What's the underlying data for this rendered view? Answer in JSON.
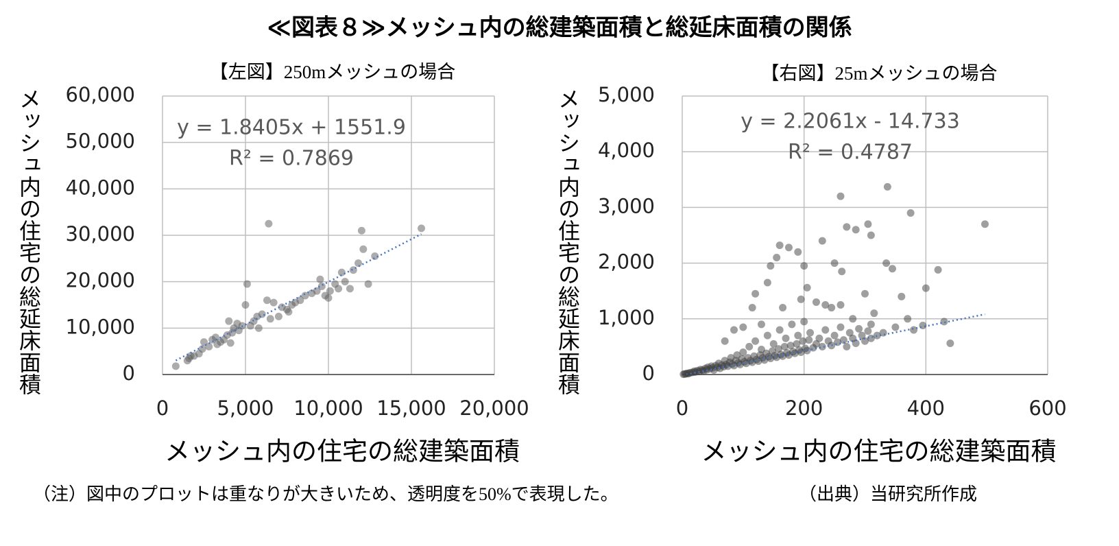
{
  "title": "≪図表８≫メッシュ内の総建築面積と総延床面積の関係",
  "note": "（注）図中のプロットは重なりが大きいため、透明度を50%で表現した。",
  "source": "（出典）当研究所作成",
  "chart_data": [
    {
      "type": "scatter",
      "title": "【左図】250mメッシュの場合",
      "x_label": "メッシュ内の住宅の総建築面積",
      "y_label": "メッシュ内の住宅の総延床面積",
      "annotations": [
        "y = 1.8405x + 1551.9",
        "R² = 0.7869"
      ],
      "color": "#595959",
      "opacity": 0.5,
      "grid": true,
      "xlim": [
        0,
        20000
      ],
      "xticks": [
        0,
        {
          "value": 5000,
          "label": "5,000"
        },
        {
          "value": 10000,
          "label": "10,000"
        },
        {
          "value": 15000,
          "label": "15,000"
        },
        {
          "value": 20000,
          "label": "20,000"
        }
      ],
      "ylim": [
        0,
        60000
      ],
      "yticks": [
        0,
        {
          "value": 10000,
          "label": "10,000"
        },
        {
          "value": 20000,
          "label": "20,000"
        },
        {
          "value": 30000,
          "label": "30,000"
        },
        {
          "value": 40000,
          "label": "40,000"
        },
        {
          "value": 50000,
          "label": "50,000"
        },
        {
          "value": 60000,
          "label": "60,000"
        }
      ],
      "trendline": {
        "color": "#4472c4",
        "x": [
          800,
          15600
        ],
        "y": [
          3024.3,
          30263.7
        ]
      },
      "x": [
        800,
        1500,
        1600,
        1700,
        2200,
        2400,
        2500,
        2800,
        3000,
        3200,
        3500,
        3700,
        3900,
        4000,
        4200,
        4300,
        4500,
        4600,
        4800,
        5000,
        5100,
        5300,
        5500,
        5700,
        5800,
        6000,
        6300,
        6400,
        6700,
        7000,
        7200,
        7500,
        7600,
        7800,
        8000,
        8300,
        8600,
        9000,
        9300,
        9500,
        9600,
        9800,
        10000,
        10100,
        10400,
        10600,
        10800,
        11000,
        11300,
        11500,
        11800,
        12000,
        12100,
        12400,
        12800,
        15600,
        3300,
        1900,
        4100,
        6500
      ],
      "values": [
        1800,
        3000,
        3500,
        4000,
        4500,
        5500,
        7000,
        6000,
        7500,
        8000,
        7000,
        7500,
        8500,
        11500,
        9000,
        10000,
        11000,
        9500,
        10500,
        15000,
        19500,
        10500,
        11500,
        12500,
        10000,
        13000,
        16000,
        32500,
        15500,
        12500,
        14500,
        14000,
        13500,
        15000,
        15500,
        16000,
        17000,
        17500,
        18000,
        20500,
        19000,
        17000,
        16500,
        18000,
        19500,
        18500,
        22000,
        20000,
        18500,
        22500,
        24000,
        31000,
        27000,
        19500,
        25500,
        31500,
        6500,
        4000,
        6800,
        12000
      ]
    },
    {
      "type": "scatter",
      "title": "【右図】25mメッシュの場合",
      "x_label": "メッシュ内の住宅の総建築面積",
      "y_label": "メッシュ内の住宅の総延床面積",
      "annotations": [
        "y = 2.2061x - 14.733",
        "R² = 0.4787"
      ],
      "color": "#404040",
      "opacity": 0.5,
      "grid": true,
      "xlim": [
        0,
        600
      ],
      "xticks": [
        0,
        200,
        400,
        600
      ],
      "ylim": [
        0,
        5000
      ],
      "yticks": [
        0,
        {
          "value": 1000,
          "label": "1,000"
        },
        {
          "value": 2000,
          "label": "2,000"
        },
        {
          "value": 3000,
          "label": "3,000"
        },
        {
          "value": 4000,
          "label": "4,000"
        },
        {
          "value": 5000,
          "label": "5,000"
        }
      ],
      "trendline": {
        "color": "#4472c4",
        "x": [
          0,
          497
        ],
        "y": [
          -14.733,
          1081.7
        ]
      },
      "x": [
        260,
        337,
        375,
        497,
        305,
        285,
        310,
        270,
        160,
        175,
        155,
        145,
        200,
        140,
        205,
        250,
        335,
        345,
        262,
        300,
        230,
        190,
        120,
        115,
        165,
        220,
        245,
        195,
        235,
        260,
        400,
        420,
        440,
        430,
        395,
        380,
        360,
        315,
        280,
        310,
        350,
        370,
        130,
        100,
        85,
        70,
        2,
        4,
        6,
        8,
        10,
        12,
        15,
        18,
        20,
        22,
        25,
        28,
        30,
        33,
        35,
        38,
        40,
        42,
        45,
        48,
        50,
        52,
        55,
        58,
        60,
        62,
        65,
        68,
        70,
        72,
        75,
        78,
        80,
        82,
        85,
        88,
        90,
        92,
        95,
        98,
        100,
        102,
        105,
        108,
        110,
        112,
        115,
        118,
        120,
        122,
        125,
        128,
        130,
        132,
        135,
        138,
        140,
        142,
        145,
        148,
        150,
        152,
        155,
        158,
        160,
        162,
        165,
        168,
        170,
        172,
        175,
        178,
        180,
        182,
        185,
        188,
        190,
        192,
        195,
        198,
        200,
        202,
        205,
        208,
        210,
        215,
        220,
        225,
        230,
        235,
        240,
        245,
        250,
        255,
        260,
        265,
        270,
        275,
        280,
        285,
        290,
        295,
        300,
        305,
        310,
        320,
        330
      ],
      "values": [
        3200,
        3370,
        2900,
        2700,
        2700,
        2600,
        2500,
        2650,
        2320,
        2280,
        2100,
        1950,
        1950,
        1650,
        1560,
        2000,
        2000,
        1900,
        1850,
        1450,
        2400,
        2200,
        1450,
        1200,
        1200,
        1300,
        1200,
        1350,
        1250,
        1250,
        1550,
        1880,
        560,
        950,
        880,
        800,
        1400,
        1100,
        1000,
        900,
        850,
        1000,
        900,
        850,
        800,
        600,
        5,
        10,
        12,
        20,
        15,
        30,
        35,
        40,
        60,
        45,
        70,
        55,
        90,
        80,
        60,
        110,
        85,
        130,
        100,
        150,
        120,
        80,
        160,
        130,
        200,
        110,
        170,
        140,
        250,
        180,
        150,
        220,
        300,
        190,
        160,
        250,
        350,
        210,
        180,
        280,
        400,
        230,
        200,
        300,
        500,
        250,
        220,
        330,
        600,
        270,
        240,
        350,
        450,
        300,
        260,
        380,
        700,
        320,
        290,
        420,
        550,
        340,
        310,
        460,
        800,
        360,
        330,
        500,
        650,
        390,
        350,
        520,
        900,
        410,
        380,
        550,
        700,
        440,
        400,
        600,
        950,
        470,
        430,
        620,
        750,
        480,
        550,
        650,
        500,
        800,
        600,
        520,
        700,
        580,
        850,
        620,
        500,
        750,
        650,
        560,
        820,
        700,
        600,
        780,
        650,
        700,
        750
      ]
    }
  ]
}
